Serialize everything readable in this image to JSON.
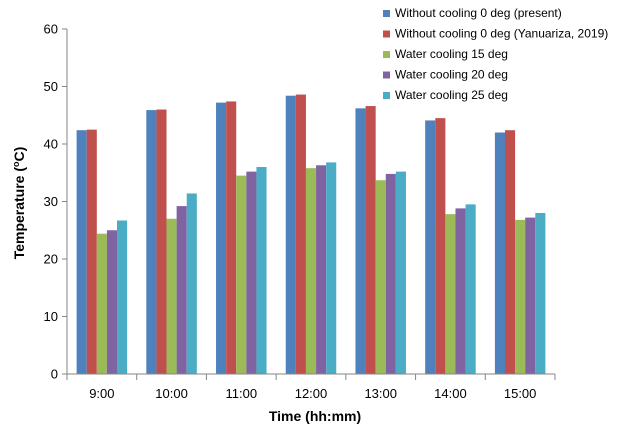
{
  "chart_data": {
    "type": "bar",
    "title": "",
    "xlabel": "Time (hh:mm)",
    "ylabel_parts": {
      "before": "Temperature (",
      "sup": "o",
      "after": "C)"
    },
    "ylim": [
      0,
      60
    ],
    "yticks": [
      0,
      10,
      20,
      30,
      40,
      50,
      60
    ],
    "categories": [
      "9:00",
      "10:00",
      "11:00",
      "12:00",
      "13:00",
      "14:00",
      "15:00"
    ],
    "legend_position": "top-right",
    "grid": false,
    "series": [
      {
        "name": "Without cooling 0 deg (present)",
        "color": "#4F81BD",
        "values": [
          42.4,
          45.9,
          47.2,
          48.4,
          46.2,
          44.1,
          42.0
        ]
      },
      {
        "name": "Without cooling 0 deg (Yanuariza, 2019)",
        "color": "#C0504D",
        "values": [
          42.5,
          46.0,
          47.4,
          48.6,
          46.6,
          44.5,
          42.4
        ]
      },
      {
        "name": "Water cooling 15 deg",
        "color": "#9BBB59",
        "values": [
          24.4,
          27.0,
          34.5,
          35.8,
          33.7,
          27.8,
          26.8
        ]
      },
      {
        "name": "Water cooling 20 deg",
        "color": "#8064A2",
        "values": [
          25.0,
          29.2,
          35.2,
          36.3,
          34.8,
          28.8,
          27.2
        ]
      },
      {
        "name": "Water cooling 25 deg",
        "color": "#4BACC6",
        "values": [
          26.7,
          31.4,
          36.0,
          36.8,
          35.2,
          29.5,
          28.0
        ]
      }
    ]
  }
}
